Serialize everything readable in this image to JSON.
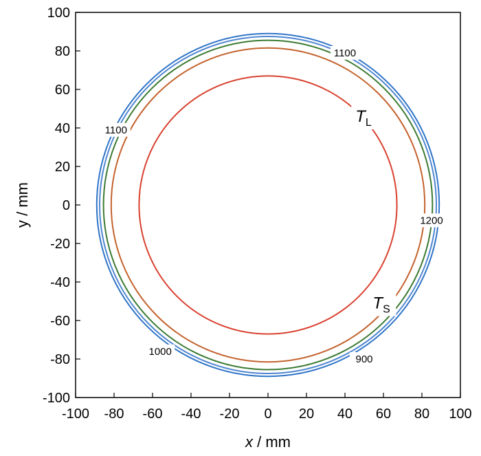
{
  "chart_data": {
    "type": "contour",
    "xlabel_var": "x",
    "xlabel_unit": " / mm",
    "ylabel": "y / mm",
    "xlim": [
      -100,
      100
    ],
    "ylim": [
      -100,
      100
    ],
    "xticks": [
      -100,
      -80,
      -60,
      -40,
      -20,
      0,
      20,
      40,
      60,
      80,
      100
    ],
    "yticks": [
      -100,
      -80,
      -60,
      -40,
      -20,
      0,
      20,
      40,
      60,
      80,
      100
    ],
    "grid": false,
    "series": [
      {
        "radius": 89,
        "color": "#2f74c8"
      },
      {
        "radius": 87.5,
        "color": "#4f86d0"
      },
      {
        "radius": 85.5,
        "color": "#3b7a32"
      },
      {
        "radius": 81.5,
        "color": "#c4622d"
      },
      {
        "radius": 67,
        "color": "#d9412f"
      }
    ],
    "contour_labels": [
      {
        "text": "1100",
        "x": 40,
        "y": 79
      },
      {
        "text": "1100",
        "x": -79,
        "y": 39
      },
      {
        "text": "1200",
        "x": 85,
        "y": -8
      },
      {
        "text": "1000",
        "x": -56,
        "y": -76
      },
      {
        "text": "900",
        "x": 50,
        "y": -80
      }
    ],
    "isotherm_labels": [
      {
        "main": "T",
        "sub": "L",
        "x": 49,
        "y": 45
      },
      {
        "main": "T",
        "sub": "S",
        "x": 58,
        "y": -52
      }
    ]
  }
}
